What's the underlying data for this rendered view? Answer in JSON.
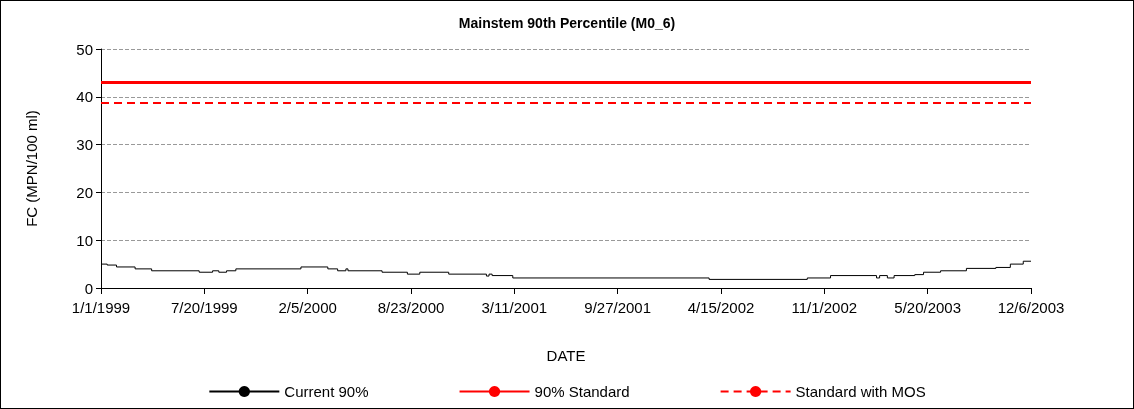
{
  "chart_data": {
    "type": "step",
    "title": "Mainstem 90th Percentile (M0_6)",
    "xlabel": "DATE",
    "ylabel": "FC (MPN/100 ml)",
    "xlim": [
      "1999-01-01",
      "2003-12-06"
    ],
    "xticks": [
      {
        "value": "1999-01-01",
        "label": "1/1/1999"
      },
      {
        "value": "1999-07-20",
        "label": "7/20/1999"
      },
      {
        "value": "2000-02-05",
        "label": "2/5/2000"
      },
      {
        "value": "2000-08-23",
        "label": "8/23/2000"
      },
      {
        "value": "2001-03-11",
        "label": "3/11/2001"
      },
      {
        "value": "2001-09-27",
        "label": "9/27/2001"
      },
      {
        "value": "2002-04-15",
        "label": "4/15/2002"
      },
      {
        "value": "2002-11-01",
        "label": "11/1/2002"
      },
      {
        "value": "2003-05-20",
        "label": "5/20/2003"
      },
      {
        "value": "2003-12-06",
        "label": "12/6/2003"
      }
    ],
    "ylim": [
      0,
      50
    ],
    "yticks": [
      0,
      10,
      20,
      30,
      40,
      50
    ],
    "grid": "y",
    "legend": "bottom",
    "marker": "none",
    "series": [
      {
        "name": "Current 90%",
        "color": "#000000",
        "line_style": "solid",
        "x": [
          "1999-01-01",
          "1999-01-13",
          "1999-01-31",
          "1999-03-08",
          "1999-04-09",
          "1999-07-10",
          "1999-08-05",
          "1999-08-17",
          "1999-09-01",
          "1999-09-19",
          "2000-01-23",
          "2000-03-15",
          "2000-04-03",
          "2000-04-19",
          "2000-04-23",
          "2000-06-28",
          "2000-08-16",
          "2000-09-09",
          "2000-11-04",
          "2001-01-16",
          "2001-01-21",
          "2001-01-27",
          "2001-03-08",
          "2002-03-23",
          "2002-09-29",
          "2002-11-13",
          "2003-02-10",
          "2003-02-16",
          "2003-03-03",
          "2003-03-16",
          "2003-04-25",
          "2003-05-12",
          "2003-06-14",
          "2003-08-03",
          "2003-09-29",
          "2003-10-27",
          "2003-11-21",
          "2003-12-06"
        ],
        "values": [
          5.0,
          4.8,
          4.4,
          4.0,
          3.6,
          3.3,
          3.6,
          3.3,
          3.6,
          4.0,
          4.4,
          4.0,
          3.6,
          4.0,
          3.6,
          3.3,
          2.9,
          3.3,
          2.9,
          2.5,
          2.9,
          2.6,
          2.1,
          1.8,
          2.1,
          2.6,
          2.1,
          2.6,
          2.1,
          2.6,
          2.8,
          3.3,
          3.6,
          4.1,
          4.3,
          5.0,
          5.6,
          5.6
        ]
      },
      {
        "type": "line",
        "name": "90% Standard",
        "color": "#ff0000",
        "line_style": "solid",
        "x": [
          "1999-01-01",
          "2003-12-06"
        ],
        "values": [
          43,
          43
        ]
      },
      {
        "type": "line",
        "name": "Standard with MOS",
        "color": "#ff0000",
        "line_style": "dashed",
        "x": [
          "1999-01-01",
          "2003-12-06"
        ],
        "values": [
          38.7,
          38.7
        ]
      }
    ]
  }
}
